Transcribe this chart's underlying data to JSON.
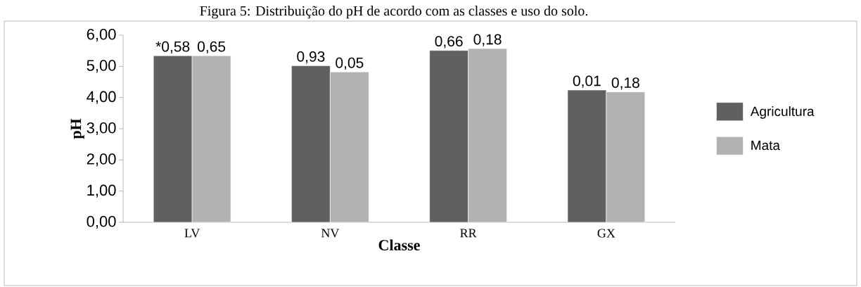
{
  "chart_data": {
    "type": "bar",
    "title": "Figura 5: Distribuição do pH de acordo com as classes e uso do solo.",
    "xlabel": "Classe",
    "ylabel": "pH",
    "categories": [
      "LV",
      "NV",
      "RR",
      "GX"
    ],
    "series": [
      {
        "name": "Agricultura",
        "color": "#606060",
        "values": [
          5.34,
          5.02,
          5.51,
          4.24
        ]
      },
      {
        "name": "Mata",
        "color": "#b2b2b2",
        "values": [
          5.34,
          4.82,
          5.57,
          4.18
        ]
      }
    ],
    "annotations": [
      {
        "text": "*0,58",
        "x": "LV",
        "y": 5.34
      },
      {
        "text": "0,65",
        "x": "LV",
        "y": 5.34
      },
      {
        "text": "0,93",
        "x": "NV",
        "y": 5.02
      },
      {
        "text": "0,05",
        "x": "NV",
        "y": 4.82
      },
      {
        "text": "0,66",
        "x": "RR",
        "y": 5.51
      },
      {
        "text": "0,18",
        "x": "RR",
        "y": 5.57
      },
      {
        "text": "0,01",
        "x": "GX",
        "y": 4.24
      },
      {
        "text": "0,18",
        "x": "GX",
        "y": 4.18
      }
    ],
    "ylim": [
      0,
      6
    ],
    "yticks": [
      {
        "value": 0,
        "label": "0,00"
      },
      {
        "value": 1,
        "label": "1,00"
      },
      {
        "value": 2,
        "label": "2,00"
      },
      {
        "value": 3,
        "label": "3,00"
      },
      {
        "value": 4,
        "label": "4,00"
      },
      {
        "value": 5,
        "label": "5,00"
      },
      {
        "value": 6,
        "label": "6,00"
      }
    ],
    "legend": "right",
    "grid": false
  }
}
